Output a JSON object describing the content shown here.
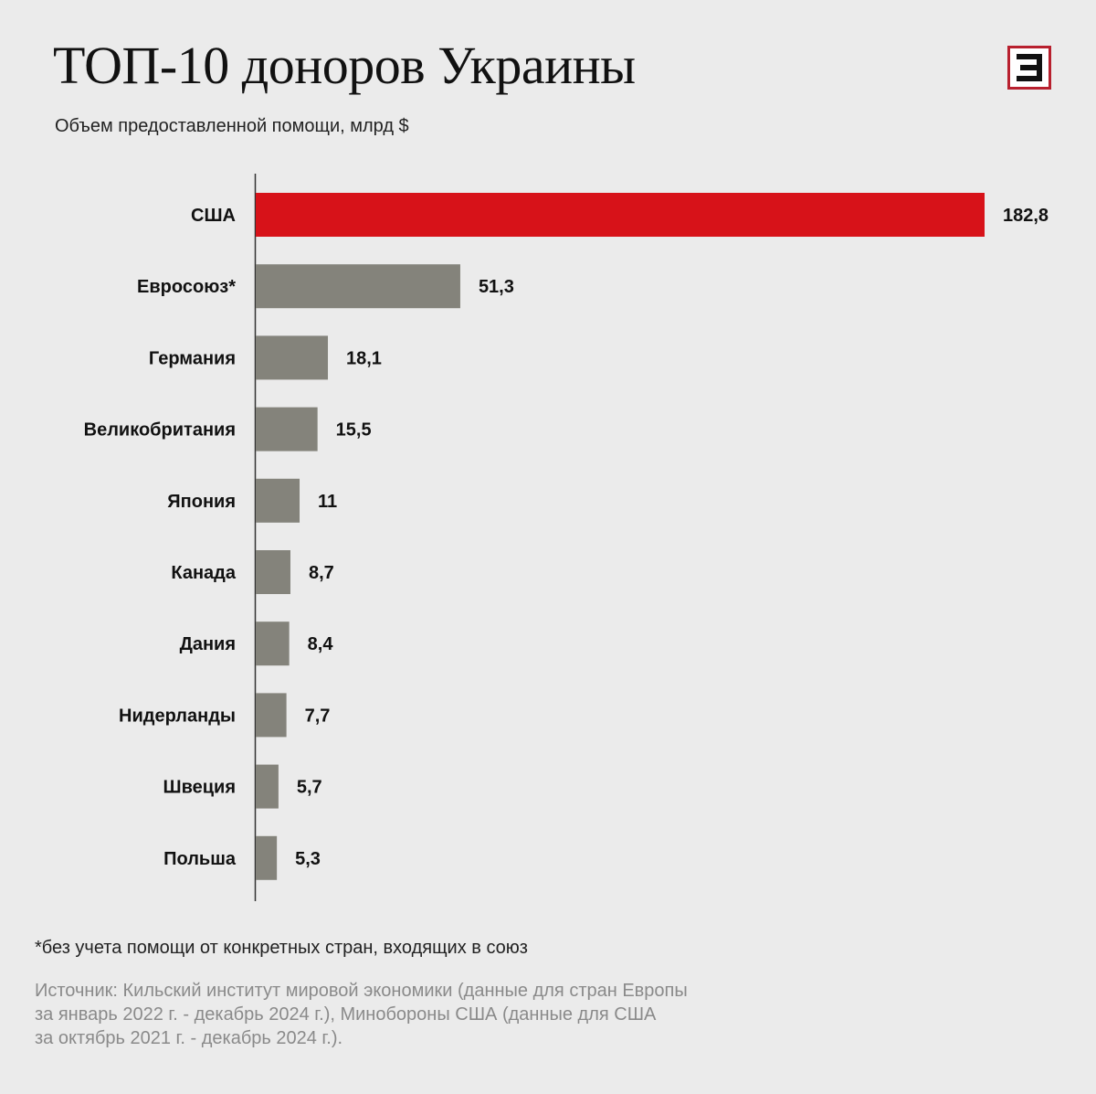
{
  "header": {
    "title": "ТОП-10 донoров Украины",
    "subtitle": "Объем предоставленной помощи, млрд $",
    "logo_icon": "e-letter-logo-icon"
  },
  "colors": {
    "background": "#ebebeb",
    "highlight": "#d71219",
    "bar": "#84837b",
    "logo_border": "#b8202e"
  },
  "chart_data": {
    "type": "bar",
    "orientation": "horizontal",
    "categories": [
      "США",
      "Евросоюз*",
      "Германия",
      "Великобритания",
      "Япония",
      "Канада",
      "Дания",
      "Нидерланды",
      "Швеция",
      "Польша"
    ],
    "values": [
      182.8,
      51.3,
      18.1,
      15.5,
      11,
      8.7,
      8.4,
      7.7,
      5.7,
      5.3
    ],
    "value_labels": [
      "182,8",
      "51,3",
      "18,1",
      "15,5",
      "11",
      "8,7",
      "8,4",
      "7,7",
      "5,7",
      "5,3"
    ],
    "highlight_index": 0,
    "xlim": [
      0,
      182.8
    ],
    "grid": false,
    "legend": "none"
  },
  "footer": {
    "footnote": "*без учета помощи от конкретных стран, входящих в союз",
    "source_lines": [
      "Источник: Кильский институт мировой экономики (данные для стран Европы",
      "за январь 2022 г. - декабрь 2024 г.), Минобороны США (данные для США",
      "за октябрь 2021 г. - декабрь 2024 г.)."
    ]
  }
}
